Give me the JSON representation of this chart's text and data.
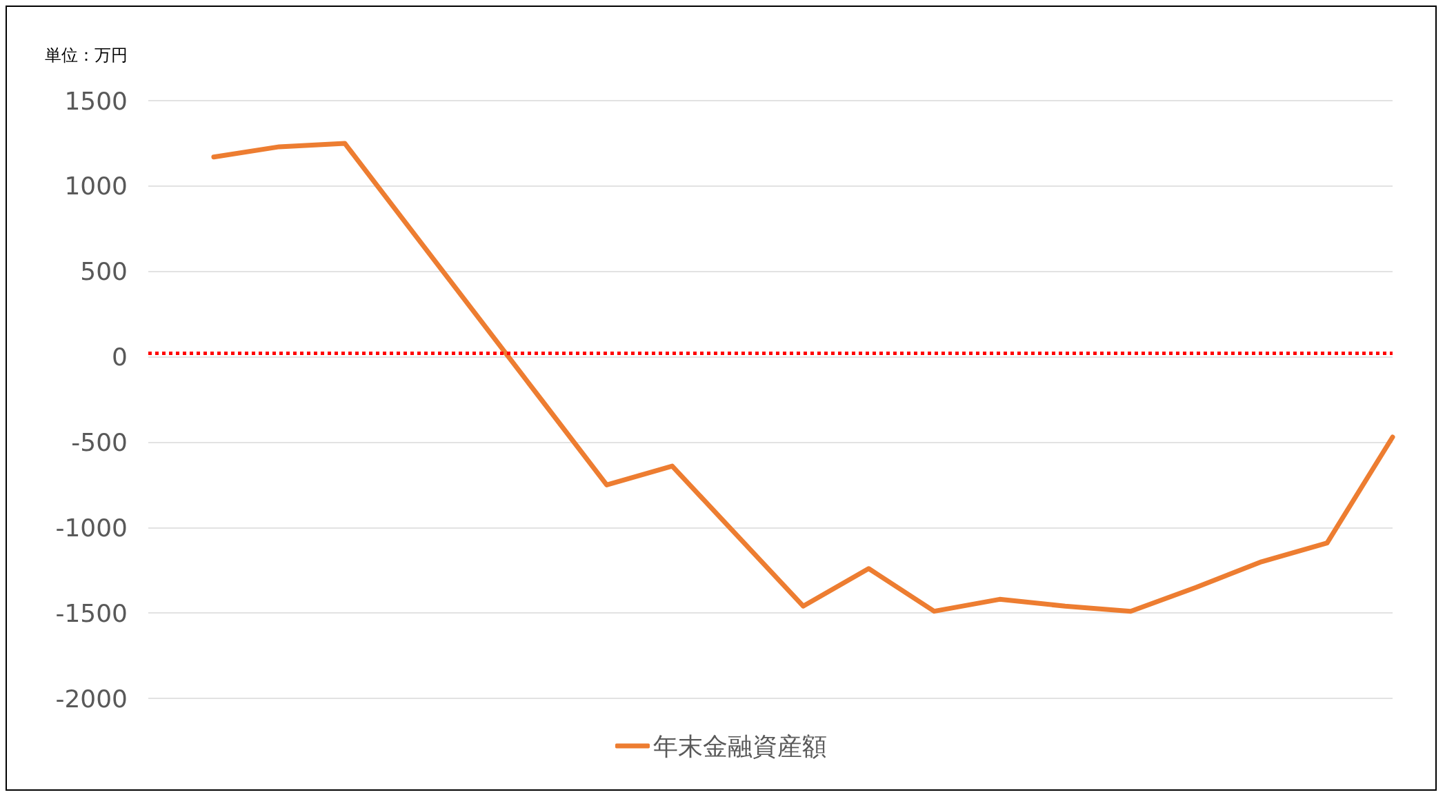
{
  "chart_data": {
    "type": "line",
    "categories": [
      null,
      null,
      null,
      null,
      null,
      null,
      null,
      null,
      null,
      null,
      null,
      null,
      null,
      null,
      null,
      null,
      null,
      null,
      null,
      null
    ],
    "series": [
      {
        "name": "年末金融資産額",
        "color": "#ed7d31",
        "values": [
          null,
          1170,
          1230,
          1250,
          750,
          250,
          -250,
          -750,
          -640,
          -1050,
          -1460,
          -1240,
          -1490,
          -1420,
          -1460,
          -1490,
          -1350,
          -1200,
          -1090,
          -470
        ]
      }
    ],
    "ylim": [
      -2000,
      1500
    ],
    "yticks": [
      -2000,
      -1500,
      -1000,
      -500,
      0,
      500,
      1000,
      1500
    ],
    "ref_lines": [
      {
        "axis": "y",
        "value": 20,
        "color": "#ff0000",
        "line_style": "dotted"
      }
    ],
    "annotations": [
      "単位：万円"
    ],
    "grid": "y",
    "legend": "bottom",
    "tick_labels": "y",
    "marker": "none",
    "line_style": "solid"
  }
}
